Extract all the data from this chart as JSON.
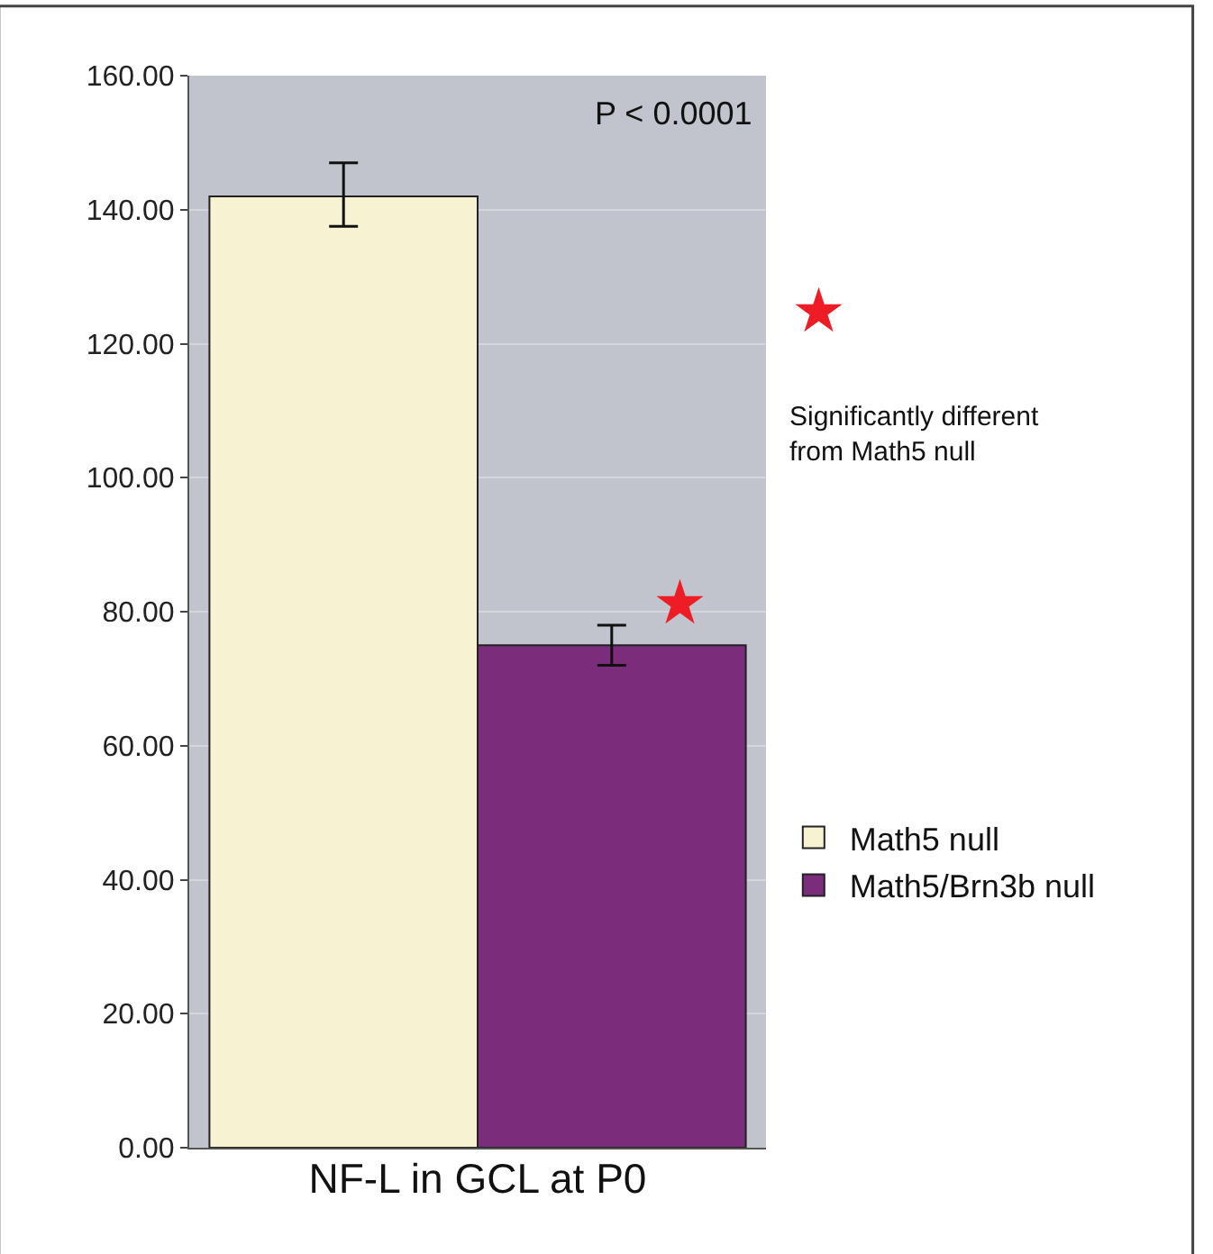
{
  "chart_data": {
    "type": "bar",
    "xlabel": "NF-L in GCL at P0",
    "categories": [
      null
    ],
    "series": [
      {
        "name": "Math5 null",
        "color": "#f7f3d2",
        "values": [
          142
        ],
        "errors": [
          [
            137.5,
            147
          ]
        ]
      },
      {
        "name": "Math5/Brn3b null",
        "color": "#7b2d7b",
        "values": [
          75
        ],
        "errors": [
          [
            72,
            78
          ]
        ]
      }
    ],
    "ylim": [
      0,
      160
    ],
    "yticks": [
      {
        "value": 0,
        "label": "0.00"
      },
      {
        "value": 20,
        "label": "20.00"
      },
      {
        "value": 40,
        "label": "40.00"
      },
      {
        "value": 60,
        "label": "60.00"
      },
      {
        "value": 80,
        "label": "80.00"
      },
      {
        "value": 100,
        "label": "100.00"
      },
      {
        "value": 120,
        "label": "120.00"
      },
      {
        "value": 140,
        "label": "140.00"
      },
      {
        "value": 160,
        "label": "160.00"
      }
    ],
    "grid": "y",
    "legend": "right",
    "annotations": [
      "P < 0.0001",
      "★",
      "Significantly different\nfrom Math5 null",
      "★"
    ]
  }
}
